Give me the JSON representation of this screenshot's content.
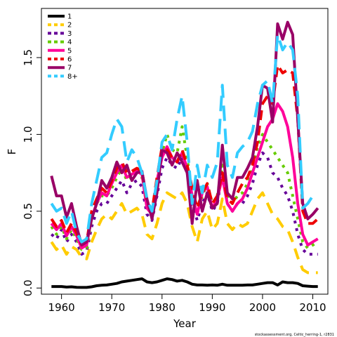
{
  "chart_data": {
    "type": "line",
    "title": "",
    "xlabel": "Year",
    "ylabel": "F",
    "xlim": [
      1956,
      2013
    ],
    "ylim": [
      -0.04,
      1.82
    ],
    "xticks": [
      1960,
      1970,
      1980,
      1990,
      2000,
      2010
    ],
    "yticks": [
      "0.0",
      "0.5",
      "1.0",
      "1.5"
    ],
    "grid": false,
    "legend": "top-left",
    "caption": "stockassessment.org, Celtic_herring-1, r2831",
    "x": [
      1958,
      1959,
      1960,
      1961,
      1962,
      1963,
      1964,
      1965,
      1966,
      1967,
      1968,
      1969,
      1970,
      1971,
      1972,
      1973,
      1974,
      1975,
      1976,
      1977,
      1978,
      1979,
      1980,
      1981,
      1982,
      1983,
      1984,
      1985,
      1986,
      1987,
      1988,
      1989,
      1990,
      1991,
      1992,
      1993,
      1994,
      1995,
      1996,
      1997,
      1998,
      1999,
      2000,
      2001,
      2002,
      2003,
      2004,
      2005,
      2006,
      2007,
      2008,
      2009,
      2010,
      2011
    ],
    "series": [
      {
        "name": "1",
        "color": "#000000",
        "dash": "solid",
        "width": 4,
        "values": [
          0.01,
          0.01,
          0.01,
          0.006,
          0.008,
          0.005,
          0.004,
          0.004,
          0.008,
          0.015,
          0.018,
          0.02,
          0.025,
          0.03,
          0.04,
          0.045,
          0.05,
          0.055,
          0.06,
          0.04,
          0.035,
          0.04,
          0.05,
          0.06,
          0.055,
          0.045,
          0.05,
          0.04,
          0.025,
          0.02,
          0.02,
          0.018,
          0.02,
          0.018,
          0.025,
          0.018,
          0.018,
          0.018,
          0.018,
          0.02,
          0.02,
          0.025,
          0.03,
          0.035,
          0.035,
          0.02,
          0.04,
          0.035,
          0.035,
          0.03,
          0.015,
          0.012,
          0.01,
          0.01
        ]
      },
      {
        "name": "2",
        "color": "#ffcc00",
        "dash": "16,10",
        "width": 4,
        "values": [
          0.3,
          0.25,
          0.28,
          0.22,
          0.27,
          0.25,
          0.2,
          0.19,
          0.3,
          0.38,
          0.45,
          0.48,
          0.45,
          0.5,
          0.55,
          0.48,
          0.5,
          0.52,
          0.48,
          0.35,
          0.32,
          0.42,
          0.55,
          0.62,
          0.6,
          0.58,
          0.62,
          0.55,
          0.4,
          0.3,
          0.45,
          0.5,
          0.38,
          0.42,
          0.58,
          0.42,
          0.38,
          0.42,
          0.4,
          0.42,
          0.5,
          0.58,
          0.62,
          0.55,
          0.48,
          0.45,
          0.4,
          0.38,
          0.3,
          0.2,
          0.12,
          0.1,
          0.1,
          0.1
        ]
      },
      {
        "name": "3",
        "color": "#660099",
        "dash": "4,7",
        "width": 4,
        "values": [
          0.35,
          0.32,
          0.38,
          0.3,
          0.35,
          0.3,
          0.22,
          0.24,
          0.4,
          0.5,
          0.55,
          0.55,
          0.6,
          0.65,
          0.7,
          0.62,
          0.68,
          0.7,
          0.66,
          0.48,
          0.44,
          0.6,
          0.78,
          0.85,
          0.8,
          0.78,
          0.85,
          0.75,
          0.55,
          0.44,
          0.55,
          0.62,
          0.5,
          0.55,
          0.75,
          0.55,
          0.5,
          0.55,
          0.55,
          0.6,
          0.68,
          0.8,
          0.88,
          0.85,
          0.75,
          0.72,
          0.65,
          0.6,
          0.5,
          0.35,
          0.25,
          0.22,
          0.22,
          0.22
        ]
      },
      {
        "name": "4",
        "color": "#66cc00",
        "dash": "4,7",
        "width": 4,
        "values": [
          0.4,
          0.35,
          0.4,
          0.32,
          0.38,
          0.32,
          0.25,
          0.26,
          0.45,
          0.55,
          0.6,
          0.6,
          0.65,
          0.72,
          0.78,
          0.7,
          0.72,
          0.75,
          0.72,
          0.55,
          0.5,
          0.68,
          0.88,
          1.0,
          0.9,
          0.88,
          1.05,
          0.85,
          0.6,
          0.5,
          0.6,
          0.68,
          0.55,
          0.6,
          0.8,
          0.6,
          0.55,
          0.6,
          0.62,
          0.68,
          0.78,
          0.92,
          1.0,
          0.95,
          0.9,
          0.85,
          0.8,
          0.75,
          0.6,
          0.45,
          0.3,
          0.26,
          0.28,
          0.3
        ]
      },
      {
        "name": "5",
        "color": "#ff0099",
        "dash": "solid",
        "width": 4,
        "values": [
          0.42,
          0.38,
          0.42,
          0.34,
          0.4,
          0.34,
          0.26,
          0.28,
          0.46,
          0.55,
          0.62,
          0.6,
          0.68,
          0.75,
          0.8,
          0.72,
          0.74,
          0.76,
          0.74,
          0.52,
          0.48,
          0.7,
          0.85,
          0.92,
          0.85,
          0.82,
          0.88,
          0.78,
          0.6,
          0.48,
          0.62,
          0.66,
          0.52,
          0.58,
          0.72,
          0.55,
          0.5,
          0.55,
          0.58,
          0.65,
          0.75,
          0.85,
          0.95,
          1.05,
          1.1,
          1.2,
          1.15,
          1.05,
          0.85,
          0.55,
          0.35,
          0.28,
          0.3,
          0.32
        ]
      },
      {
        "name": "6",
        "color": "#ee0000",
        "dash": "14,8",
        "width": 4,
        "values": [
          0.45,
          0.4,
          0.44,
          0.36,
          0.42,
          0.36,
          0.28,
          0.3,
          0.5,
          0.58,
          0.65,
          0.62,
          0.7,
          0.78,
          0.82,
          0.75,
          0.76,
          0.78,
          0.76,
          0.56,
          0.5,
          0.72,
          0.92,
          0.9,
          0.85,
          0.82,
          0.9,
          0.8,
          0.65,
          0.52,
          0.62,
          0.68,
          0.55,
          0.6,
          0.75,
          0.58,
          0.55,
          0.62,
          0.68,
          0.72,
          0.8,
          0.95,
          1.2,
          1.25,
          1.2,
          1.45,
          1.4,
          1.42,
          1.4,
          1.1,
          0.5,
          0.42,
          0.42,
          0.45
        ]
      },
      {
        "name": "7",
        "color": "#990066",
        "dash": "solid",
        "width": 4,
        "values": [
          0.73,
          0.6,
          0.6,
          0.46,
          0.55,
          0.4,
          0.28,
          0.3,
          0.45,
          0.55,
          0.7,
          0.65,
          0.72,
          0.82,
          0.75,
          0.8,
          0.7,
          0.75,
          0.76,
          0.58,
          0.45,
          0.62,
          0.9,
          0.88,
          0.8,
          0.88,
          0.82,
          0.75,
          0.42,
          0.7,
          0.5,
          0.62,
          0.52,
          0.55,
          0.93,
          0.62,
          0.58,
          0.72,
          0.72,
          0.78,
          0.85,
          1.05,
          1.32,
          1.3,
          1.08,
          1.72,
          1.62,
          1.73,
          1.65,
          1.1,
          0.55,
          0.45,
          0.48,
          0.52
        ]
      },
      {
        "name": "8+",
        "color": "#33ccff",
        "dash": "22,11",
        "width": 4,
        "values": [
          0.55,
          0.5,
          0.52,
          0.42,
          0.5,
          0.36,
          0.3,
          0.32,
          0.55,
          0.7,
          0.85,
          0.88,
          1.0,
          1.1,
          1.05,
          0.82,
          0.9,
          0.85,
          0.75,
          0.58,
          0.5,
          0.7,
          0.95,
          1.0,
          0.9,
          1.1,
          1.25,
          0.95,
          0.55,
          0.8,
          0.62,
          0.8,
          0.72,
          0.82,
          1.32,
          0.8,
          0.72,
          0.88,
          0.92,
          0.95,
          1.02,
          1.2,
          1.32,
          1.35,
          1.2,
          1.65,
          1.55,
          1.6,
          1.55,
          1.25,
          0.52,
          0.55,
          0.6,
          0.6
        ]
      }
    ]
  }
}
